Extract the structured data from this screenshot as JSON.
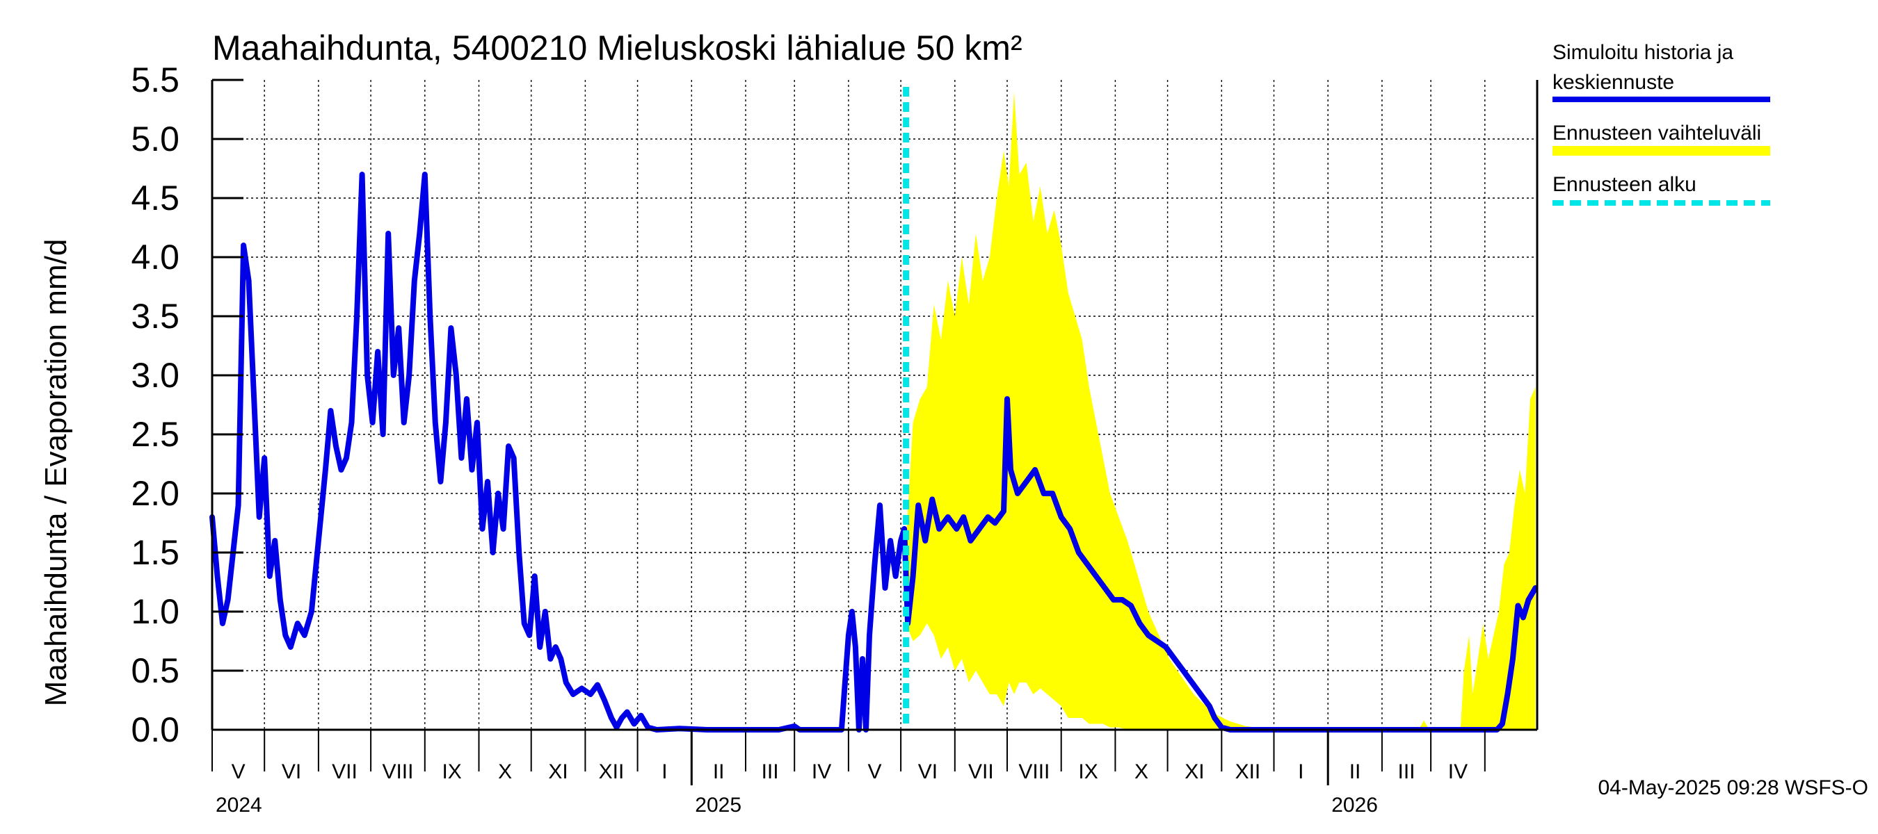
{
  "chart_data": {
    "type": "line",
    "title": "Maahaihdunta, 5400210 Mieluskoski lähialue 50 km²",
    "ylabel": "Maahaihdunta / Evaporation   mm/d",
    "ylim": [
      0,
      5.5
    ],
    "yticks": [
      "0.0",
      "0.5",
      "1.0",
      "1.5",
      "2.0",
      "2.5",
      "3.0",
      "3.5",
      "4.0",
      "4.5",
      "5.0",
      "5.5"
    ],
    "grid": true,
    "x_range": [
      "2024-04-01",
      "2026-04-30"
    ],
    "months": [
      "V",
      "VI",
      "VII",
      "VIII",
      "IX",
      "X",
      "XI",
      "XII",
      "I",
      "II",
      "III",
      "IV",
      "V",
      "VI",
      "VII",
      "VIII",
      "IX",
      "X",
      "XI",
      "XII",
      "I",
      "II",
      "III",
      "IV"
    ],
    "years": [
      "2024",
      "2025",
      "2026"
    ],
    "forecast_start": "2025-05-04",
    "legend_position": "right",
    "legend": [
      {
        "name": "Simuloitu historia ja keskiennuste",
        "lines": [
          "Simuloitu historia ja",
          "keskiennuste"
        ],
        "color": "#0000e6",
        "style": "solid"
      },
      {
        "name": "Ennusteen vaihteluväli",
        "lines": [
          "Ennusteen vaihteluväli"
        ],
        "color": "#ffff00",
        "style": "band"
      },
      {
        "name": "Ennusteen alku",
        "lines": [
          "Ennusteen alku"
        ],
        "color": "#00e5e5",
        "style": "dashed"
      }
    ],
    "series": [
      {
        "name": "Simuloitu historia ja keskiennuste",
        "color": "#0000e6",
        "points": [
          [
            "2024-04-01",
            1.8
          ],
          [
            "2024-04-04",
            1.3
          ],
          [
            "2024-04-07",
            0.9
          ],
          [
            "2024-04-10",
            1.1
          ],
          [
            "2024-04-13",
            1.5
          ],
          [
            "2024-04-16",
            1.9
          ],
          [
            "2024-04-19",
            4.1
          ],
          [
            "2024-04-22",
            3.8
          ],
          [
            "2024-04-25",
            2.8
          ],
          [
            "2024-04-28",
            1.8
          ],
          [
            "2024-05-01",
            2.3
          ],
          [
            "2024-05-04",
            1.3
          ],
          [
            "2024-05-07",
            1.6
          ],
          [
            "2024-05-10",
            1.1
          ],
          [
            "2024-05-13",
            0.8
          ],
          [
            "2024-05-16",
            0.7
          ],
          [
            "2024-05-20",
            0.9
          ],
          [
            "2024-05-24",
            0.8
          ],
          [
            "2024-05-28",
            1.0
          ],
          [
            "2024-06-01",
            1.6
          ],
          [
            "2024-06-05",
            2.2
          ],
          [
            "2024-06-08",
            2.7
          ],
          [
            "2024-06-11",
            2.4
          ],
          [
            "2024-06-14",
            2.2
          ],
          [
            "2024-06-17",
            2.3
          ],
          [
            "2024-06-20",
            2.6
          ],
          [
            "2024-06-23",
            3.5
          ],
          [
            "2024-06-26",
            4.7
          ],
          [
            "2024-06-29",
            3.0
          ],
          [
            "2024-07-02",
            2.6
          ],
          [
            "2024-07-05",
            3.2
          ],
          [
            "2024-07-08",
            2.5
          ],
          [
            "2024-07-11",
            4.2
          ],
          [
            "2024-07-14",
            3.0
          ],
          [
            "2024-07-17",
            3.4
          ],
          [
            "2024-07-20",
            2.6
          ],
          [
            "2024-07-23",
            3.0
          ],
          [
            "2024-07-26",
            3.8
          ],
          [
            "2024-07-29",
            4.2
          ],
          [
            "2024-08-01",
            4.7
          ],
          [
            "2024-08-04",
            3.5
          ],
          [
            "2024-08-07",
            2.6
          ],
          [
            "2024-08-10",
            2.1
          ],
          [
            "2024-08-13",
            2.6
          ],
          [
            "2024-08-16",
            3.4
          ],
          [
            "2024-08-19",
            3.0
          ],
          [
            "2024-08-22",
            2.3
          ],
          [
            "2024-08-25",
            2.8
          ],
          [
            "2024-08-28",
            2.2
          ],
          [
            "2024-08-31",
            2.6
          ],
          [
            "2024-09-03",
            1.7
          ],
          [
            "2024-09-06",
            2.1
          ],
          [
            "2024-09-09",
            1.5
          ],
          [
            "2024-09-12",
            2.0
          ],
          [
            "2024-09-15",
            1.7
          ],
          [
            "2024-09-18",
            2.4
          ],
          [
            "2024-09-21",
            2.3
          ],
          [
            "2024-09-24",
            1.5
          ],
          [
            "2024-09-27",
            0.9
          ],
          [
            "2024-09-30",
            0.8
          ],
          [
            "2024-10-03",
            1.3
          ],
          [
            "2024-10-06",
            0.7
          ],
          [
            "2024-10-09",
            1.0
          ],
          [
            "2024-10-12",
            0.6
          ],
          [
            "2024-10-15",
            0.7
          ],
          [
            "2024-10-18",
            0.6
          ],
          [
            "2024-10-21",
            0.4
          ],
          [
            "2024-10-25",
            0.3
          ],
          [
            "2024-10-30",
            0.35
          ],
          [
            "2024-11-04",
            0.3
          ],
          [
            "2024-11-08",
            0.38
          ],
          [
            "2024-11-12",
            0.25
          ],
          [
            "2024-11-16",
            0.1
          ],
          [
            "2024-11-19",
            0.02
          ],
          [
            "2024-11-22",
            0.1
          ],
          [
            "2024-11-25",
            0.15
          ],
          [
            "2024-11-29",
            0.05
          ],
          [
            "2024-12-03",
            0.12
          ],
          [
            "2024-12-07",
            0.02
          ],
          [
            "2024-12-12",
            0.0
          ],
          [
            "2024-12-25",
            0.01
          ],
          [
            "2025-01-10",
            0.0
          ],
          [
            "2025-02-20",
            0.0
          ],
          [
            "2025-03-01",
            0.03
          ],
          [
            "2025-03-04",
            0.0
          ],
          [
            "2025-03-28",
            0.0
          ],
          [
            "2025-04-01",
            0.8
          ],
          [
            "2025-04-03",
            1.0
          ],
          [
            "2025-04-05",
            0.7
          ],
          [
            "2025-04-07",
            0.0
          ],
          [
            "2025-04-09",
            0.6
          ],
          [
            "2025-04-11",
            0.0
          ],
          [
            "2025-04-13",
            0.8
          ],
          [
            "2025-04-16",
            1.4
          ],
          [
            "2025-04-19",
            1.9
          ],
          [
            "2025-04-22",
            1.2
          ],
          [
            "2025-04-25",
            1.6
          ],
          [
            "2025-04-28",
            1.3
          ],
          [
            "2025-05-01",
            1.6
          ],
          [
            "2025-05-03",
            1.7
          ],
          [
            "2025-05-05",
            0.9
          ],
          [
            "2025-05-08",
            1.3
          ],
          [
            "2025-05-11",
            1.9
          ],
          [
            "2025-05-15",
            1.6
          ],
          [
            "2025-05-19",
            1.95
          ],
          [
            "2025-05-23",
            1.7
          ],
          [
            "2025-05-28",
            1.8
          ],
          [
            "2025-06-02",
            1.7
          ],
          [
            "2025-06-06",
            1.8
          ],
          [
            "2025-06-10",
            1.6
          ],
          [
            "2025-06-15",
            1.7
          ],
          [
            "2025-06-20",
            1.8
          ],
          [
            "2025-06-24",
            1.75
          ],
          [
            "2025-06-29",
            1.85
          ],
          [
            "2025-07-01",
            2.8
          ],
          [
            "2025-07-03",
            2.2
          ],
          [
            "2025-07-07",
            2.0
          ],
          [
            "2025-07-12",
            2.1
          ],
          [
            "2025-07-17",
            2.2
          ],
          [
            "2025-07-22",
            2.0
          ],
          [
            "2025-07-27",
            2.0
          ],
          [
            "2025-08-01",
            1.8
          ],
          [
            "2025-08-06",
            1.7
          ],
          [
            "2025-08-11",
            1.5
          ],
          [
            "2025-08-16",
            1.4
          ],
          [
            "2025-08-21",
            1.3
          ],
          [
            "2025-08-26",
            1.2
          ],
          [
            "2025-08-31",
            1.1
          ],
          [
            "2025-09-05",
            1.1
          ],
          [
            "2025-09-10",
            1.05
          ],
          [
            "2025-09-15",
            0.9
          ],
          [
            "2025-09-20",
            0.8
          ],
          [
            "2025-09-25",
            0.75
          ],
          [
            "2025-09-30",
            0.7
          ],
          [
            "2025-10-05",
            0.6
          ],
          [
            "2025-10-10",
            0.5
          ],
          [
            "2025-10-15",
            0.4
          ],
          [
            "2025-10-20",
            0.3
          ],
          [
            "2025-10-25",
            0.2
          ],
          [
            "2025-10-28",
            0.1
          ],
          [
            "2025-11-01",
            0.02
          ],
          [
            "2025-11-06",
            0.0
          ],
          [
            "2026-03-31",
            0.0
          ],
          [
            "2026-04-08",
            0.0
          ],
          [
            "2026-04-11",
            0.05
          ],
          [
            "2026-04-14",
            0.3
          ],
          [
            "2026-04-17",
            0.6
          ],
          [
            "2026-04-20",
            1.05
          ],
          [
            "2026-04-23",
            0.95
          ],
          [
            "2026-04-26",
            1.1
          ],
          [
            "2026-04-30",
            1.2
          ]
        ]
      },
      {
        "name": "Ennusteen vaihteluväli",
        "color": "#ffff00",
        "points": [
          [
            "2025-05-04",
            0.9,
            1.6
          ],
          [
            "2025-05-08",
            0.75,
            2.6
          ],
          [
            "2025-05-12",
            0.8,
            2.8
          ],
          [
            "2025-05-16",
            0.9,
            2.9
          ],
          [
            "2025-05-20",
            0.8,
            3.6
          ],
          [
            "2025-05-24",
            0.6,
            3.3
          ],
          [
            "2025-05-28",
            0.7,
            3.8
          ],
          [
            "2025-06-01",
            0.5,
            3.5
          ],
          [
            "2025-06-05",
            0.6,
            4.0
          ],
          [
            "2025-06-09",
            0.4,
            3.6
          ],
          [
            "2025-06-13",
            0.5,
            4.2
          ],
          [
            "2025-06-17",
            0.4,
            3.8
          ],
          [
            "2025-06-21",
            0.3,
            4.0
          ],
          [
            "2025-06-25",
            0.3,
            4.5
          ],
          [
            "2025-06-29",
            0.2,
            4.9
          ],
          [
            "2025-07-02",
            0.4,
            4.6
          ],
          [
            "2025-07-05",
            0.3,
            5.4
          ],
          [
            "2025-07-08",
            0.4,
            4.7
          ],
          [
            "2025-07-12",
            0.4,
            4.8
          ],
          [
            "2025-07-16",
            0.3,
            4.3
          ],
          [
            "2025-07-20",
            0.35,
            4.6
          ],
          [
            "2025-07-24",
            0.3,
            4.2
          ],
          [
            "2025-07-28",
            0.25,
            4.4
          ],
          [
            "2025-08-01",
            0.2,
            4.1
          ],
          [
            "2025-08-05",
            0.1,
            3.7
          ],
          [
            "2025-08-09",
            0.1,
            3.5
          ],
          [
            "2025-08-13",
            0.1,
            3.3
          ],
          [
            "2025-08-17",
            0.05,
            2.9
          ],
          [
            "2025-08-21",
            0.05,
            2.6
          ],
          [
            "2025-08-25",
            0.05,
            2.3
          ],
          [
            "2025-08-29",
            0.02,
            2.0
          ],
          [
            "2025-09-03",
            0.02,
            1.8
          ],
          [
            "2025-09-08",
            0.0,
            1.6
          ],
          [
            "2025-09-14",
            0.0,
            1.3
          ],
          [
            "2025-09-20",
            0.0,
            1.0
          ],
          [
            "2025-09-26",
            0.0,
            0.8
          ],
          [
            "2025-10-02",
            0.0,
            0.6
          ],
          [
            "2025-10-09",
            0.0,
            0.45
          ],
          [
            "2025-10-16",
            0.0,
            0.3
          ],
          [
            "2025-10-23",
            0.0,
            0.2
          ],
          [
            "2025-10-30",
            0.0,
            0.12
          ],
          [
            "2025-11-06",
            0.0,
            0.07
          ],
          [
            "2025-11-15",
            0.0,
            0.03
          ],
          [
            "2025-11-25",
            0.0,
            0.01
          ],
          [
            "2025-12-05",
            0.0,
            0.0
          ],
          [
            "2026-02-22",
            0.0,
            0.0
          ],
          [
            "2026-02-25",
            0.0,
            0.08
          ],
          [
            "2026-02-28",
            0.0,
            0.0
          ],
          [
            "2026-03-18",
            0.0,
            0.0
          ],
          [
            "2026-03-20",
            0.0,
            0.5
          ],
          [
            "2026-03-23",
            0.0,
            0.8
          ],
          [
            "2026-03-25",
            0.0,
            0.3
          ],
          [
            "2026-03-28",
            0.0,
            0.6
          ],
          [
            "2026-03-31",
            0.0,
            0.9
          ],
          [
            "2026-04-03",
            0.0,
            0.6
          ],
          [
            "2026-04-06",
            0.0,
            0.8
          ],
          [
            "2026-04-09",
            0.0,
            1.0
          ],
          [
            "2026-04-12",
            0.0,
            1.4
          ],
          [
            "2026-04-15",
            0.0,
            1.5
          ],
          [
            "2026-04-18",
            0.0,
            1.9
          ],
          [
            "2026-04-21",
            0.0,
            2.2
          ],
          [
            "2026-04-24",
            0.0,
            2.0
          ],
          [
            "2026-04-27",
            0.0,
            2.8
          ],
          [
            "2026-04-30",
            0.0,
            2.9
          ]
        ]
      }
    ]
  },
  "footer": "04-May-2025 09:28 WSFS-O"
}
